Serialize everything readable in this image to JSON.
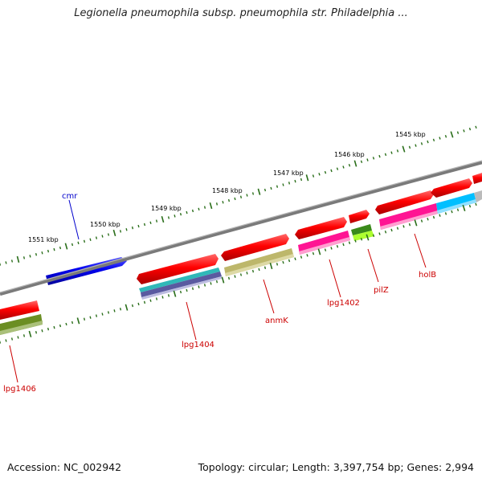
{
  "title": "Legionella pneumophila subsp. pneumophila str. Philadelphia ...",
  "footer": {
    "accession": "Accession: NC_002942",
    "summary": "Topology: circular; Length: 3,397,754 bp; Genes: 2,994"
  },
  "ruler": {
    "labels": [
      "1545 kbp",
      "1546 kbp",
      "1547 kbp",
      "1548 kbp",
      "1549 kbp",
      "1550 kbp",
      "1551 kbp"
    ]
  },
  "genes": {
    "cmr": {
      "label": "cmr",
      "color": "#0000cc"
    },
    "lpg1404": {
      "label": "lpg1404",
      "color": "#cc0000"
    },
    "anmK": {
      "label": "anmK",
      "color": "#cc0000"
    },
    "lpg1402": {
      "label": "lpg1402",
      "color": "#cc0000"
    },
    "pilZ": {
      "label": "pilZ",
      "color": "#cc0000"
    },
    "holB": {
      "label": "holB",
      "color": "#cc0000"
    },
    "lpg1406": {
      "label": "lpg1406",
      "color": "#cc0000"
    }
  },
  "colors": {
    "backbone": "#7a7a7a",
    "ticks": "#2a6e1a",
    "cds_red": "#ee0000",
    "reverse_cds": "#0000ee",
    "cog_cyan": "#30b8b8",
    "cog_khaki": "#bdb76b",
    "cog_magenta": "#ff1493",
    "cog_green": "#5a8a1a",
    "cog_lime": "#adff2f",
    "cog_sky": "#00bfff",
    "cog_grey": "#bbbbbb",
    "cog_slate": "#4a4a8a"
  }
}
